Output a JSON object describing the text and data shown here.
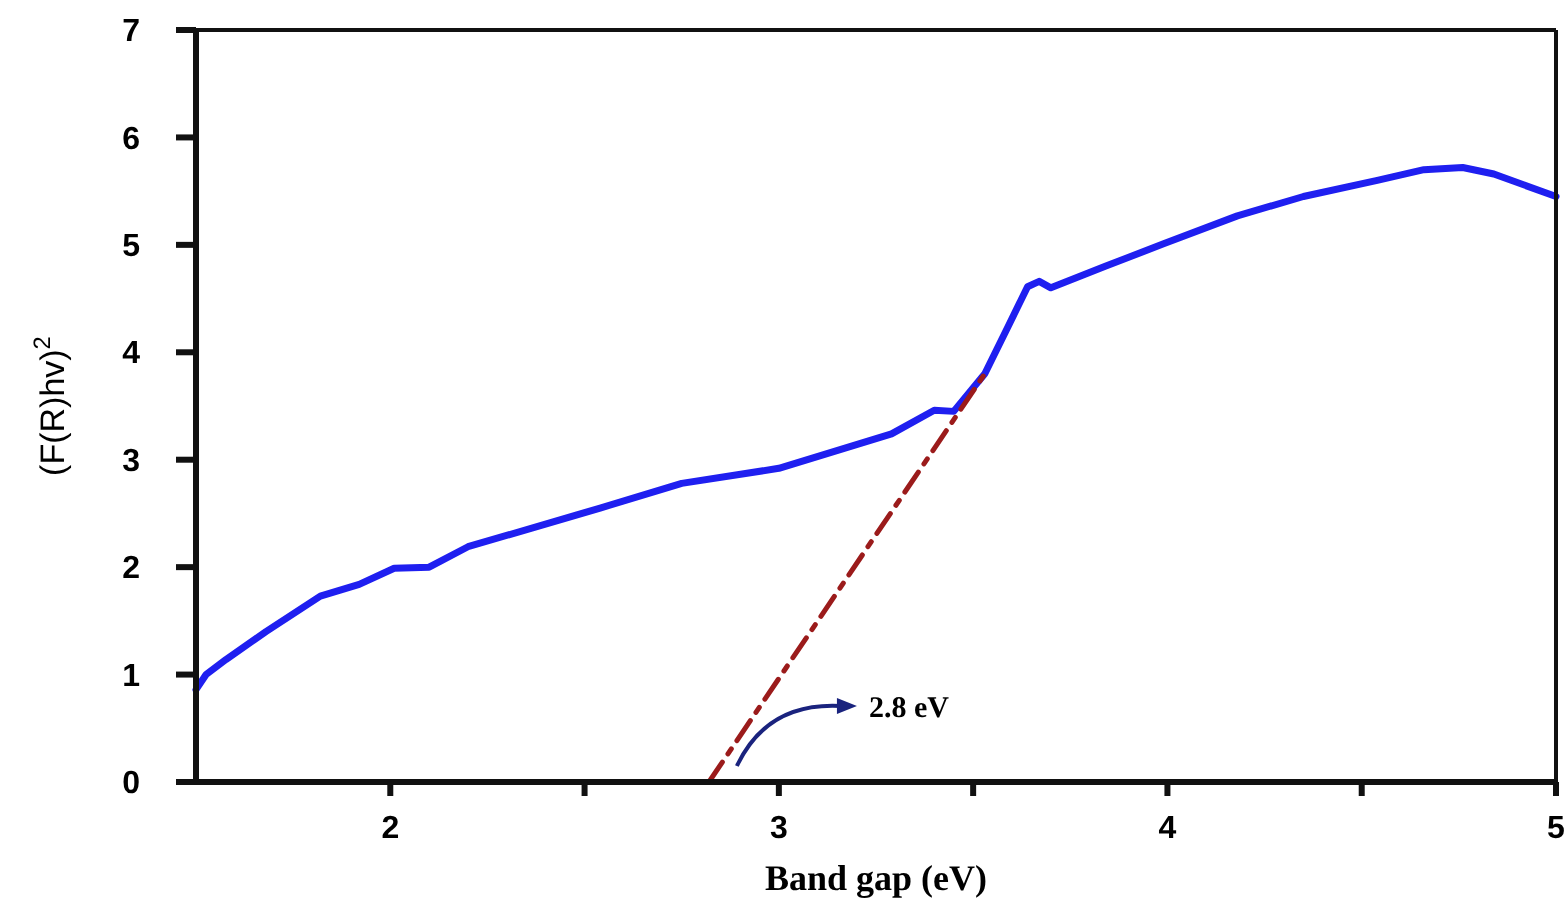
{
  "chart_data": {
    "type": "line",
    "xlabel": "Band gap (eV)",
    "ylabel": "(F(R)hv)$^{2}$",
    "xlim": [
      1.5,
      5
    ],
    "xticks": [
      2,
      {
        "value": 2.5,
        "label": null
      },
      3,
      {
        "value": 3.5,
        "label": null
      },
      4,
      {
        "value": 4.5,
        "label": null
      },
      5
    ],
    "ylim": [
      0,
      7
    ],
    "yticks": [
      0,
      1,
      2,
      3,
      4,
      5,
      6,
      7
    ],
    "series": [
      {
        "color": "#1f1ff0",
        "line_style": "solid",
        "x": [
          1.5,
          1.526,
          1.577,
          1.68,
          1.82,
          1.92,
          2.01,
          2.1,
          2.2,
          2.54,
          2.75,
          3.0,
          3.29,
          3.4,
          3.45,
          3.53,
          3.59,
          3.64,
          3.67,
          3.7,
          3.84,
          3.99,
          4.18,
          4.35,
          4.54,
          4.66,
          4.76,
          4.84,
          5.0
        ],
        "values": [
          0.86,
          1.0,
          1.14,
          1.4,
          1.73,
          1.84,
          1.99,
          2.0,
          2.19,
          2.55,
          2.78,
          2.92,
          3.24,
          3.46,
          3.45,
          3.8,
          4.24,
          4.61,
          4.66,
          4.6,
          4.8,
          5.01,
          5.27,
          5.45,
          5.6,
          5.7,
          5.72,
          5.66,
          5.45
        ]
      },
      {
        "color": "#9b1b1b",
        "line_style": "dashed",
        "x": [
          2.82,
          3.53
        ],
        "values": [
          0,
          3.8
        ]
      }
    ],
    "annotations": [
      "2.8 eV"
    ]
  }
}
